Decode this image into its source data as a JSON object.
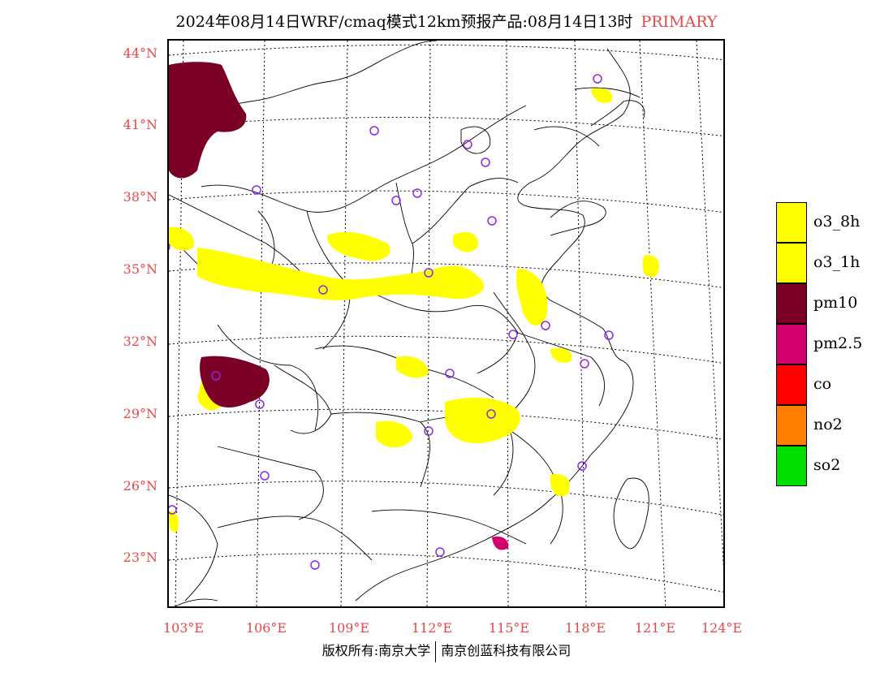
{
  "header": {
    "title": "2024年08月14日WRF/cmaq模式12km预报产品:08月14日13时",
    "tag": "PRIMARY"
  },
  "map": {
    "lat_labels": [
      "44°N",
      "41°N",
      "38°N",
      "35°N",
      "32°N",
      "29°N",
      "26°N",
      "23°N"
    ],
    "lon_labels": [
      "103°E",
      "106°E",
      "109°E",
      "112°E",
      "115°E",
      "118°E",
      "121°E",
      "124°E"
    ],
    "colors": {
      "o3_8h": "#ffff00",
      "o3_1h": "#ffff00",
      "pm10": "#7a0026",
      "pm25": "#d2006e",
      "station": "#8a2be2",
      "label": "#e8474a"
    }
  },
  "legend": {
    "items": [
      {
        "label": "o3_8h",
        "color": "#ffff00"
      },
      {
        "label": "o3_1h",
        "color": "#ffff00"
      },
      {
        "label": "pm10",
        "color": "#7a0026"
      },
      {
        "label": "pm2.5",
        "color": "#d2006e"
      },
      {
        "label": "co",
        "color": "#ff0000"
      },
      {
        "label": "no2",
        "color": "#ff8000"
      },
      {
        "label": "so2",
        "color": "#00e000"
      }
    ]
  },
  "footer": {
    "left": "版权所有:南京大学",
    "right": "南京创蓝科技有限公司"
  }
}
